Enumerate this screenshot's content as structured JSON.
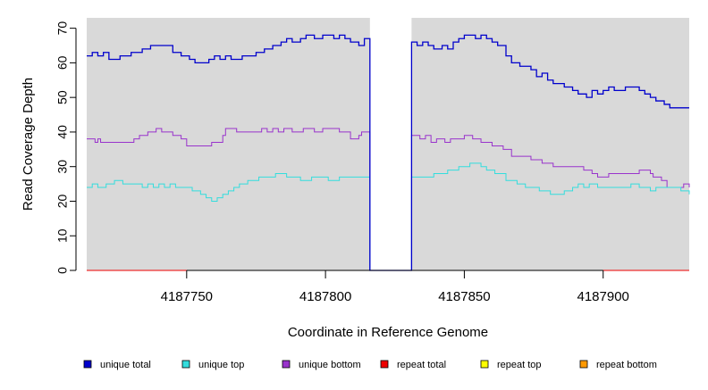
{
  "chart_data": {
    "type": "line",
    "title": "",
    "xlabel": "Coordinate in Reference Genome",
    "ylabel": "Read Coverage Depth",
    "xlim": [
      4187714,
      4187931
    ],
    "ylim": [
      0,
      73
    ],
    "x_ticks": [
      4187750,
      4187800,
      4187850,
      4187900
    ],
    "x_tick_labels": [
      "4187750",
      "4187800",
      "4187850",
      "4187900"
    ],
    "y_ticks": [
      0,
      10,
      20,
      30,
      40,
      50,
      60,
      70
    ],
    "y_tick_labels": [
      "0",
      "10",
      "20",
      "30",
      "40",
      "50",
      "60",
      "70"
    ],
    "gap": [
      4187816,
      4187831
    ],
    "background_color": "#d9d9d9",
    "legend": [
      {
        "label": "unique total",
        "color": "#0000cc"
      },
      {
        "label": "unique top",
        "color": "#33dddd"
      },
      {
        "label": "unique bottom",
        "color": "#9933cc"
      },
      {
        "label": "repeat total",
        "color": "#ee0000"
      },
      {
        "label": "repeat top",
        "color": "#ffff00"
      },
      {
        "label": "repeat bottom",
        "color": "#ff9900"
      }
    ],
    "series": [
      {
        "name": "unique total",
        "color": "#0000cc",
        "points": [
          [
            4187714,
            62
          ],
          [
            4187716,
            63
          ],
          [
            4187718,
            62
          ],
          [
            4187720,
            63
          ],
          [
            4187722,
            61
          ],
          [
            4187726,
            62
          ],
          [
            4187730,
            63
          ],
          [
            4187734,
            64
          ],
          [
            4187737,
            65
          ],
          [
            4187745,
            63
          ],
          [
            4187748,
            62
          ],
          [
            4187751,
            61
          ],
          [
            4187753,
            60
          ],
          [
            4187758,
            61
          ],
          [
            4187760,
            62
          ],
          [
            4187762,
            61
          ],
          [
            4187764,
            62
          ],
          [
            4187766,
            61
          ],
          [
            4187770,
            62
          ],
          [
            4187775,
            63
          ],
          [
            4187778,
            64
          ],
          [
            4187781,
            65
          ],
          [
            4187784,
            66
          ],
          [
            4187786,
            67
          ],
          [
            4187788,
            66
          ],
          [
            4187791,
            67
          ],
          [
            4187793,
            68
          ],
          [
            4187796,
            67
          ],
          [
            4187799,
            68
          ],
          [
            4187803,
            67
          ],
          [
            4187805,
            68
          ],
          [
            4187807,
            67
          ],
          [
            4187809,
            66
          ],
          [
            4187812,
            65
          ],
          [
            4187814,
            67
          ],
          [
            4187816,
            0
          ],
          [
            4187831,
            66
          ],
          [
            4187833,
            65
          ],
          [
            4187835,
            66
          ],
          [
            4187837,
            65
          ],
          [
            4187839,
            64
          ],
          [
            4187842,
            65
          ],
          [
            4187844,
            64
          ],
          [
            4187846,
            66
          ],
          [
            4187848,
            67
          ],
          [
            4187850,
            68
          ],
          [
            4187854,
            67
          ],
          [
            4187856,
            68
          ],
          [
            4187858,
            67
          ],
          [
            4187860,
            66
          ],
          [
            4187862,
            65
          ],
          [
            4187865,
            62
          ],
          [
            4187867,
            60
          ],
          [
            4187870,
            59
          ],
          [
            4187874,
            58
          ],
          [
            4187876,
            56
          ],
          [
            4187878,
            57
          ],
          [
            4187880,
            55
          ],
          [
            4187882,
            54
          ],
          [
            4187886,
            53
          ],
          [
            4187889,
            52
          ],
          [
            4187891,
            51
          ],
          [
            4187894,
            50
          ],
          [
            4187896,
            52
          ],
          [
            4187898,
            51
          ],
          [
            4187900,
            52
          ],
          [
            4187902,
            53
          ],
          [
            4187904,
            52
          ],
          [
            4187908,
            53
          ],
          [
            4187913,
            52
          ],
          [
            4187915,
            51
          ],
          [
            4187917,
            50
          ],
          [
            4187919,
            49
          ],
          [
            4187922,
            48
          ],
          [
            4187924,
            47
          ],
          [
            4187931,
            47
          ]
        ]
      },
      {
        "name": "unique top",
        "color": "#33dddd",
        "points": [
          [
            4187714,
            24
          ],
          [
            4187716,
            25
          ],
          [
            4187718,
            24
          ],
          [
            4187721,
            25
          ],
          [
            4187724,
            26
          ],
          [
            4187727,
            25
          ],
          [
            4187731,
            25
          ],
          [
            4187734,
            24
          ],
          [
            4187736,
            25
          ],
          [
            4187738,
            24
          ],
          [
            4187740,
            25
          ],
          [
            4187742,
            24
          ],
          [
            4187744,
            25
          ],
          [
            4187746,
            24
          ],
          [
            4187752,
            23
          ],
          [
            4187755,
            22
          ],
          [
            4187757,
            21
          ],
          [
            4187759,
            20
          ],
          [
            4187761,
            21
          ],
          [
            4187763,
            22
          ],
          [
            4187765,
            23
          ],
          [
            4187767,
            24
          ],
          [
            4187769,
            25
          ],
          [
            4187772,
            26
          ],
          [
            4187776,
            27
          ],
          [
            4187779,
            27
          ],
          [
            4187782,
            28
          ],
          [
            4187786,
            27
          ],
          [
            4187791,
            26
          ],
          [
            4187795,
            27
          ],
          [
            4187801,
            26
          ],
          [
            4187805,
            27
          ],
          [
            4187808,
            27
          ],
          [
            4187816,
            0
          ],
          [
            4187831,
            27
          ],
          [
            4187839,
            28
          ],
          [
            4187844,
            29
          ],
          [
            4187848,
            30
          ],
          [
            4187852,
            31
          ],
          [
            4187856,
            30
          ],
          [
            4187858,
            29
          ],
          [
            4187861,
            28
          ],
          [
            4187865,
            26
          ],
          [
            4187869,
            25
          ],
          [
            4187872,
            24
          ],
          [
            4187877,
            23
          ],
          [
            4187881,
            22
          ],
          [
            4187886,
            23
          ],
          [
            4187889,
            24
          ],
          [
            4187891,
            25
          ],
          [
            4187893,
            24
          ],
          [
            4187895,
            25
          ],
          [
            4187898,
            24
          ],
          [
            4187905,
            24
          ],
          [
            4187910,
            25
          ],
          [
            4187913,
            24
          ],
          [
            4187917,
            23
          ],
          [
            4187919,
            24
          ],
          [
            4187924,
            24
          ],
          [
            4187928,
            23
          ],
          [
            4187931,
            22
          ]
        ]
      },
      {
        "name": "unique bottom",
        "color": "#9933cc",
        "points": [
          [
            4187714,
            38
          ],
          [
            4187717,
            37
          ],
          [
            4187718,
            38
          ],
          [
            4187719,
            37
          ],
          [
            4187731,
            38
          ],
          [
            4187733,
            39
          ],
          [
            4187736,
            40
          ],
          [
            4187739,
            41
          ],
          [
            4187741,
            40
          ],
          [
            4187745,
            39
          ],
          [
            4187748,
            38
          ],
          [
            4187750,
            36
          ],
          [
            4187759,
            37
          ],
          [
            4187763,
            39
          ],
          [
            4187764,
            41
          ],
          [
            4187768,
            40
          ],
          [
            4187777,
            41
          ],
          [
            4187779,
            40
          ],
          [
            4187781,
            41
          ],
          [
            4187783,
            40
          ],
          [
            4187785,
            41
          ],
          [
            4187788,
            40
          ],
          [
            4187792,
            41
          ],
          [
            4187796,
            40
          ],
          [
            4187799,
            41
          ],
          [
            4187805,
            40
          ],
          [
            4187809,
            38
          ],
          [
            4187812,
            39
          ],
          [
            4187813,
            40
          ],
          [
            4187816,
            0
          ],
          [
            4187831,
            39
          ],
          [
            4187834,
            38
          ],
          [
            4187836,
            39
          ],
          [
            4187838,
            37
          ],
          [
            4187840,
            38
          ],
          [
            4187843,
            37
          ],
          [
            4187845,
            38
          ],
          [
            4187847,
            38
          ],
          [
            4187850,
            39
          ],
          [
            4187853,
            38
          ],
          [
            4187856,
            37
          ],
          [
            4187860,
            36
          ],
          [
            4187864,
            35
          ],
          [
            4187867,
            33
          ],
          [
            4187871,
            33
          ],
          [
            4187874,
            32
          ],
          [
            4187878,
            31
          ],
          [
            4187882,
            30
          ],
          [
            4187887,
            30
          ],
          [
            4187893,
            29
          ],
          [
            4187896,
            28
          ],
          [
            4187898,
            27
          ],
          [
            4187902,
            28
          ],
          [
            4187908,
            28
          ],
          [
            4187913,
            29
          ],
          [
            4187917,
            28
          ],
          [
            4187918,
            27
          ],
          [
            4187921,
            26
          ],
          [
            4187923,
            24
          ],
          [
            4187929,
            25
          ],
          [
            4187931,
            24
          ]
        ]
      },
      {
        "name": "repeat total",
        "color": "#ee0000",
        "points": [
          [
            4187714,
            0
          ],
          [
            4187931,
            0
          ]
        ]
      },
      {
        "name": "repeat top",
        "color": "#ffff00",
        "points": [
          [
            4187714,
            0
          ],
          [
            4187931,
            0
          ]
        ]
      },
      {
        "name": "repeat bottom",
        "color": "#ff9900",
        "points": [
          [
            4187714,
            0
          ],
          [
            4187931,
            0
          ]
        ]
      }
    ]
  }
}
